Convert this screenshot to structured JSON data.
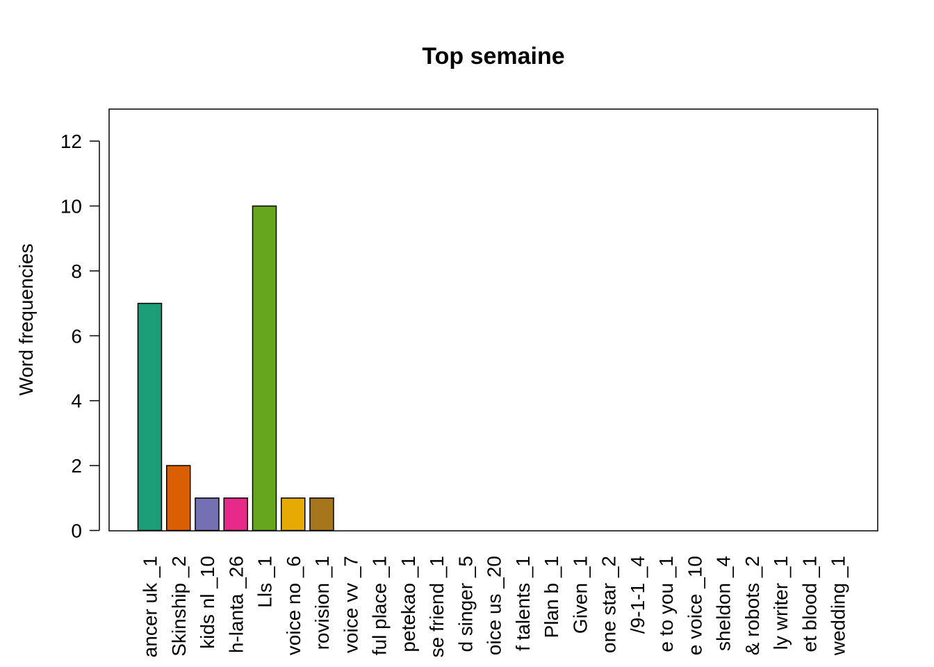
{
  "chart_data": {
    "type": "bar",
    "title": "Top semaine",
    "xlabel": "",
    "ylabel": "Word frequencies",
    "ylim": [
      0,
      13
    ],
    "yticks": [
      0,
      2,
      4,
      6,
      8,
      10,
      12
    ],
    "grid": false,
    "legend": "none",
    "categories": [
      "ancer uk _1",
      "Skinship _2",
      "kids nl _10",
      "h-lanta _26",
      "Lls _1",
      "voice no _6",
      "rovision _1",
      "voice vv _7",
      "ful place _1",
      "petekao _1",
      "se friend _1",
      "d singer _5",
      "oice us _20",
      "f talents _1",
      "Plan b _1",
      "Given _1",
      "one star _2",
      "/9-1-1 _4",
      "e to you _1",
      "e voice _10",
      "sheldon _4",
      "& robots _2",
      "ly writer _1",
      "et blood _1",
      "wedding _1"
    ],
    "values": [
      7,
      2,
      1,
      1,
      10,
      1,
      1,
      0,
      0,
      0,
      0,
      0,
      0,
      0,
      0,
      0,
      0,
      0,
      0,
      0,
      0,
      0,
      0,
      0,
      0
    ],
    "colors": [
      "#1B9E77",
      "#D95F02",
      "#7570B3",
      "#E7298A",
      "#66A61E",
      "#E6AB02",
      "#A6761D",
      "#666666"
    ]
  }
}
